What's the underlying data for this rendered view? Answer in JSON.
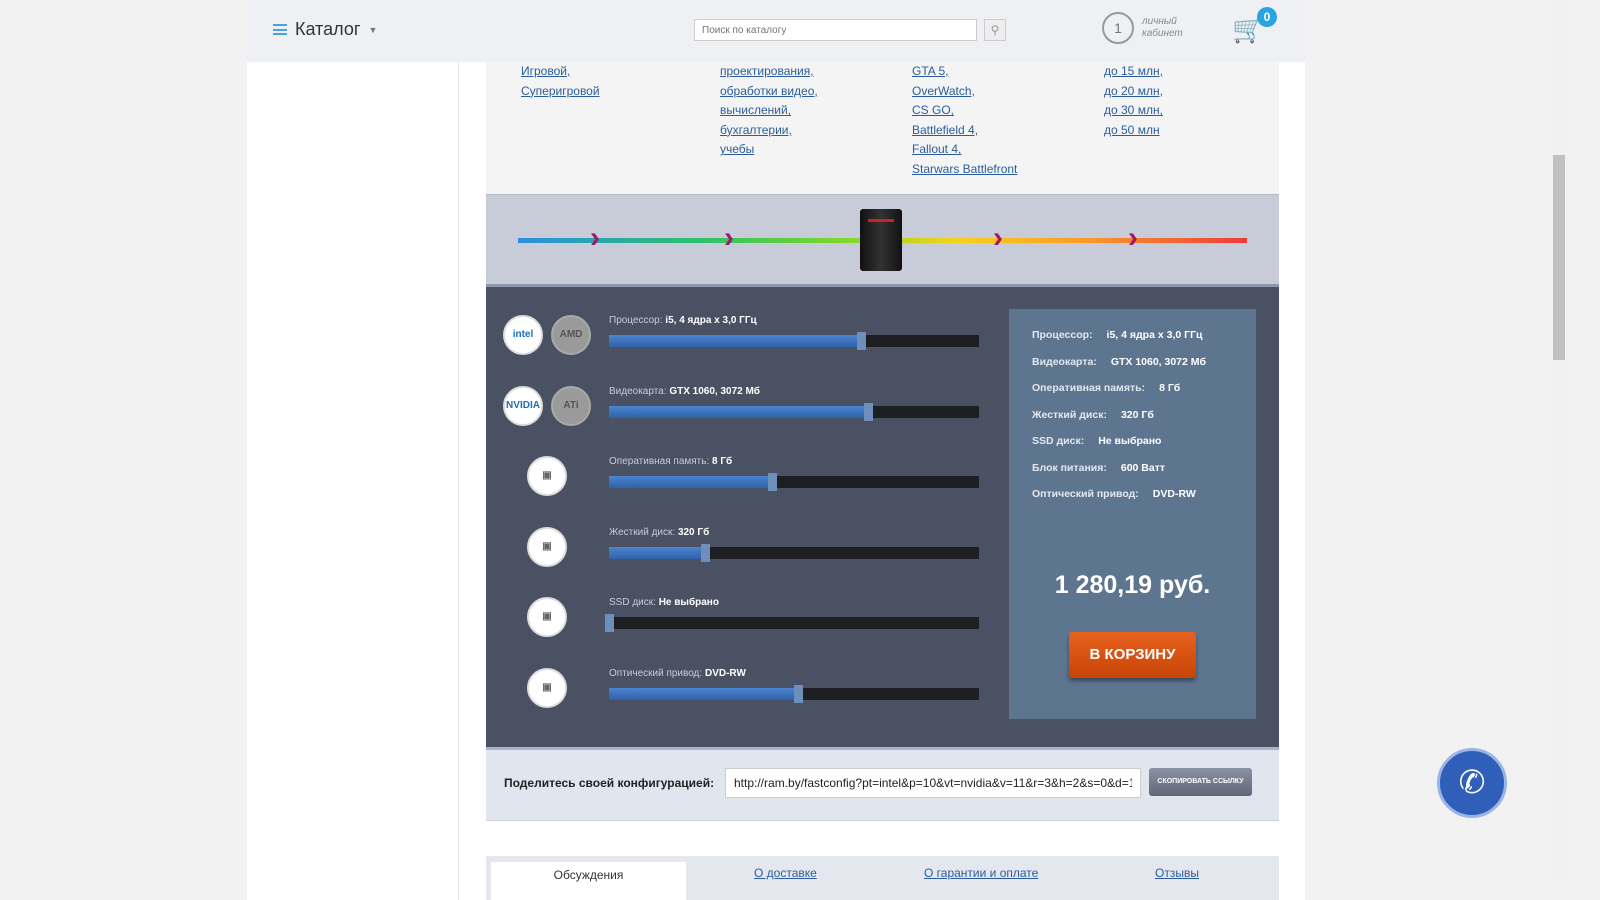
{
  "header": {
    "catalog": "Каталог",
    "search_placeholder": "Поиск по каталогу",
    "account_line1": "личный",
    "account_line2": "кабинет",
    "cart_count": "0"
  },
  "links": [
    [
      "Игровой,",
      "Суперигровой"
    ],
    [
      "проектирования,",
      "обработки видео,",
      "вычислений,",
      "бухгалтерии,",
      "учебы"
    ],
    [
      "GTA 5,",
      "OverWatch,",
      "CS GO,",
      "Battlefield 4,",
      "Fallout 4,",
      "Starwars Battlefront"
    ],
    [
      "до 15 млн,",
      "до 20 млн,",
      "до 30 млн,",
      "до 50 млн"
    ]
  ],
  "components": [
    {
      "label": "Процессор:",
      "value": "i5, 4 ядра x 3,0 ГГц",
      "level_percent": 68,
      "logos": [
        "intel",
        "AMD"
      ]
    },
    {
      "label": "Видеокарта:",
      "value": "GTX 1060, 3072 Мб",
      "level_percent": 70,
      "logos": [
        "NVIDIA",
        "ATi"
      ]
    },
    {
      "label": "Оперативная память:",
      "value": "8 Гб",
      "level_percent": 44,
      "icon": "ram-icon"
    },
    {
      "label": "Жесткий диск:",
      "value": "320 Гб",
      "level_percent": 26,
      "icon": "hdd-icon"
    },
    {
      "label": "SSD диск:",
      "value": "Не выбрано",
      "level_percent": 0,
      "icon": "ssd-icon"
    },
    {
      "label": "Оптический привод:",
      "value": "DVD-RW",
      "level_percent": 51,
      "icon": "optical-drive-icon"
    }
  ],
  "summary": {
    "rows": [
      {
        "label": "Процессор:",
        "value": "i5, 4 ядра x 3,0 ГГц"
      },
      {
        "label": "Видеокарта:",
        "value": "GTX 1060, 3072 Мб"
      },
      {
        "label": "Оперативная память:",
        "value": "8 Гб"
      },
      {
        "label": "Жесткий диск:",
        "value": "320 Гб"
      },
      {
        "label": "SSD диск:",
        "value": "Не выбрано"
      },
      {
        "label": "Блок питания:",
        "value": "600 Ватт"
      },
      {
        "label": "Оптический привод:",
        "value": "DVD-RW"
      }
    ],
    "price": "1 280,19 руб.",
    "buy": "В КОРЗИНУ"
  },
  "share": {
    "label": "Поделитесь своей конфигурацией:",
    "url": "http://ram.by/fastconfig?pt=intel&p=10&vt=nvidia&v=11&r=3&h=2&s=0&d=1",
    "copy": "СКОПИРОВАТЬ ССЫЛКУ"
  },
  "tabs": [
    "Обсуждения",
    "О доставке",
    "О гарантии и оплате",
    "Отзывы"
  ]
}
